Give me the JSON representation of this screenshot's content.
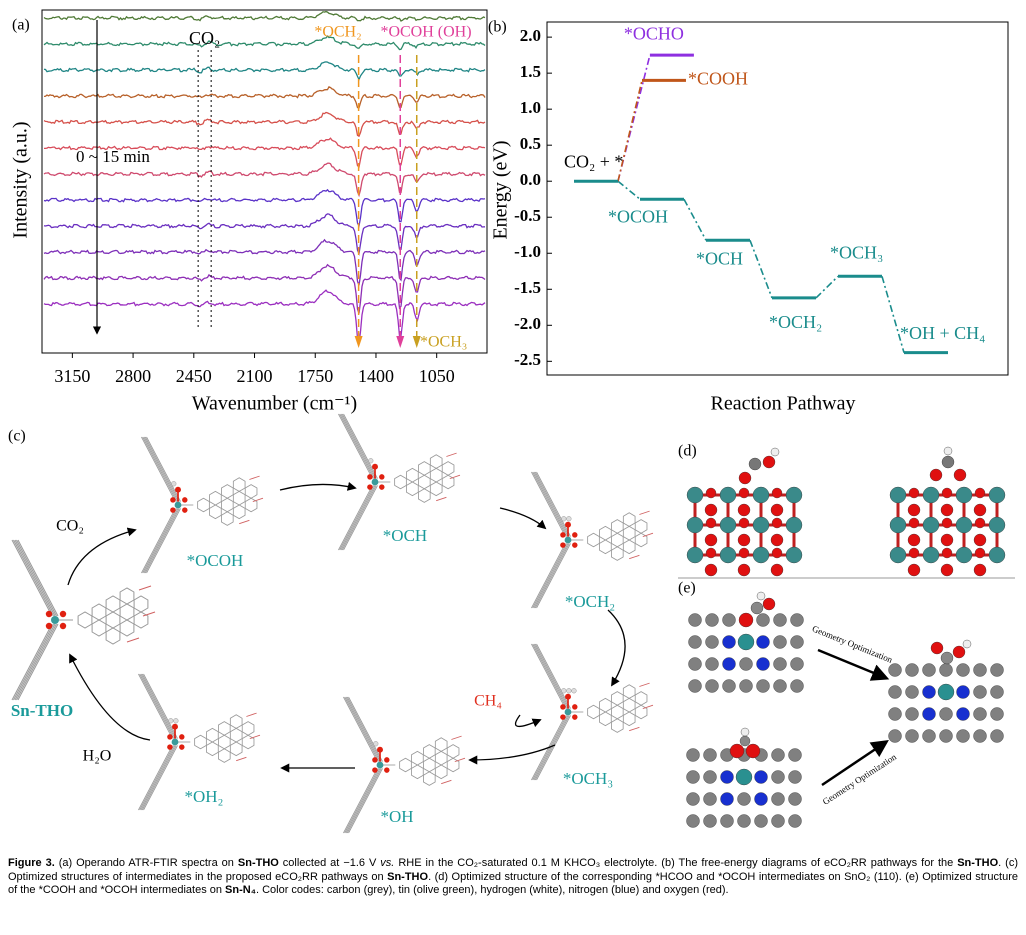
{
  "chart_data": [
    {
      "type": "spectra",
      "label": "(a)",
      "x_label": "Wavenumber (cm⁻¹)",
      "y_label": "Intensity (a.u.)",
      "xlim": [
        3325,
        760
      ],
      "xticks": [
        3150,
        2800,
        2450,
        2100,
        1750,
        1400,
        1050
      ],
      "trace_colors": [
        "#4f7a36",
        "#2e8b6b",
        "#1f8585",
        "#b8612a",
        "#d5504a",
        "#d84c5a",
        "#cf4a6e",
        "#5a32c8",
        "#6a2fc0",
        "#7d2fb8",
        "#8e2fb5",
        "#9b2fc0"
      ],
      "time_label": "0 ~ 15 min",
      "bands": [
        {
          "label": "CO₂",
          "x": [
            2425,
            2350
          ],
          "color": "#000000"
        },
        {
          "label": "*OCH₂",
          "x": [
            1500
          ],
          "color": "#f0961e"
        },
        {
          "label": "*OCOH (OH)",
          "x": [
            1260
          ],
          "color": "#e0409a"
        },
        {
          "label": "*OCH₃",
          "x": [
            1165
          ],
          "color": "#c9a020"
        }
      ]
    },
    {
      "type": "energy",
      "label": "(b)",
      "x_label": "Reaction Pathway",
      "y_label": "Energy (eV)",
      "ylim": [
        -2.69,
        2.21
      ],
      "yticks": [
        {
          "value": 2,
          "label": "2.0"
        },
        1.5,
        {
          "value": 1,
          "label": "1.0"
        },
        0.5,
        {
          "value": 0,
          "label": "0.0"
        },
        -0.5,
        {
          "value": -1,
          "label": "-1.0"
        },
        -1.5,
        {
          "value": -2,
          "label": "-2.0"
        },
        -2.5
      ],
      "series": [
        {
          "color": "#1a8c8c",
          "x": [
            0,
            1,
            2,
            3,
            4,
            5
          ],
          "labels": [
            "CO₂ + *",
            "*OCOH",
            "*OCH",
            "*OCH₂",
            "*OCH₃",
            "*OH + CH₄"
          ],
          "values": [
            0,
            -0.25,
            -0.82,
            -1.62,
            -1.32,
            -2.38
          ]
        },
        {
          "color": "#8e2fe0",
          "x": [
            1.15
          ],
          "labels": [
            "*OCHO"
          ],
          "values": [
            1.75
          ]
        },
        {
          "color": "#c0561a",
          "x": [
            1.03
          ],
          "labels": [
            "*COOH"
          ],
          "values": [
            1.4
          ]
        }
      ]
    }
  ],
  "panel_c": {
    "label": "(c)",
    "catalyst": "Sn-THO",
    "intermediates": [
      "*OCOH",
      "*OCH",
      "*OCH₂",
      "*OCH₃",
      "*OH",
      "*OH₂"
    ],
    "reactant": "CO₂",
    "product": "CH₄",
    "byproduct": "H₂O"
  },
  "panel_d": {
    "label": "(d)"
  },
  "panel_e": {
    "label": "(e)",
    "arrows": [
      "Geometry Optimization",
      "Geometry Optimization"
    ]
  },
  "caption": [
    {
      "text": "Figure 3.",
      "style": "bold"
    },
    {
      "text": " (a) Operando ATR-FTIR spectra on "
    },
    {
      "text": "Sn-THO",
      "style": "bold"
    },
    {
      "text": " collected at −1.6 V "
    },
    {
      "text": "vs.",
      "style": "italic"
    },
    {
      "text": " RHE in the CO₂-saturated 0.1 M KHCO₃ electrolyte. (b) The free-energy diagrams of eCO₂RR pathways for the "
    },
    {
      "text": "Sn-THO",
      "style": "bold"
    },
    {
      "text": ". (c) Optimized structures of intermediates in the proposed eCO₂RR pathways on "
    },
    {
      "text": "Sn-THO",
      "style": "bold"
    },
    {
      "text": ". (d) Optimized structure of the corresponding *HCOO and *OCOH intermediates on SnO₂ (110). (e) Optimized structure of the *COOH and *OCOH intermediates on "
    },
    {
      "text": "Sn-N₄",
      "style": "bold"
    },
    {
      "text": ". Color codes: carbon (grey), tin (olive green), hydrogen (white), nitrogen (blue) and oxygen (red)."
    }
  ]
}
